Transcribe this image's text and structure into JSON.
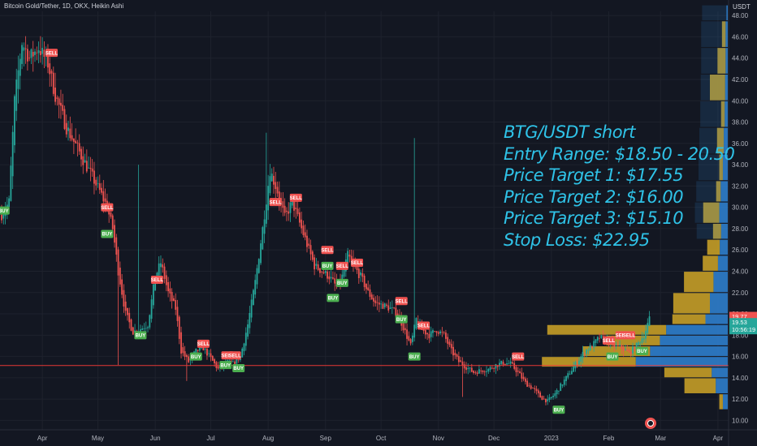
{
  "header": {
    "symbol_line": "Bitcoin Gold/Tether, 1D, OKX, Heikin Ashi",
    "price_unit": "USDT"
  },
  "annotation": {
    "lines": [
      "BTG/USDT short",
      "Entry Range: $18.50 - 20.50",
      "Price Target 1: $17.55",
      "Price Target 2: $16.00",
      "Price Target 3: $15.10",
      "Stop Loss: $22.95"
    ]
  },
  "price_tags": {
    "last": "19.77",
    "current": "19.53",
    "countdown": "10:56:19"
  },
  "colors": {
    "background": "#131722",
    "bull": "#26a69a",
    "bear": "#ef5350",
    "annotation": "#2fc3e8",
    "volume_profile_up": "#2e7dc9",
    "volume_profile_down": "#c9a227",
    "support_line": "#e53935",
    "buy_tag": "#4caf50",
    "sell_tag": "#f05250"
  },
  "chart_data": {
    "type": "candlestick",
    "chart_style": "Heikin Ashi",
    "y_axis": {
      "position": "right",
      "ylim": [
        9.5,
        49
      ],
      "ticks": [
        "10.00",
        "12.00",
        "14.00",
        "16.00",
        "18.00",
        "20.00",
        "22.00",
        "24.00",
        "26.00",
        "28.00",
        "30.00",
        "32.00",
        "34.00",
        "36.00",
        "38.00",
        "40.00",
        "42.00",
        "44.00",
        "46.00",
        "48.00"
      ]
    },
    "x_axis": {
      "start": "2022-03-10",
      "end": "2023-04-05",
      "ticks": [
        {
          "label": "Apr",
          "date": "2022-04-01"
        },
        {
          "label": "May",
          "date": "2022-05-01"
        },
        {
          "label": "Jun",
          "date": "2022-06-01"
        },
        {
          "label": "Jul",
          "date": "2022-07-01"
        },
        {
          "label": "Aug",
          "date": "2022-08-01"
        },
        {
          "label": "Sep",
          "date": "2022-09-01"
        },
        {
          "label": "Oct",
          "date": "2022-10-01"
        },
        {
          "label": "Nov",
          "date": "2022-11-01"
        },
        {
          "label": "Dec",
          "date": "2022-12-01"
        },
        {
          "label": "2023",
          "date": "2023-01-01"
        },
        {
          "label": "Feb",
          "date": "2023-02-01"
        },
        {
          "label": "Mar",
          "date": "2023-03-01"
        },
        {
          "label": "Apr",
          "date": "2023-04-01"
        }
      ]
    },
    "grid": true,
    "support_line": 15.15,
    "price_path": [
      {
        "date": "2022-03-10",
        "price": 29.3
      },
      {
        "date": "2022-03-14",
        "price": 30.5
      },
      {
        "date": "2022-03-17",
        "price": 40.0
      },
      {
        "date": "2022-03-21",
        "price": 45.5
      },
      {
        "date": "2022-03-25",
        "price": 44.0
      },
      {
        "date": "2022-03-30",
        "price": 45.0
      },
      {
        "date": "2022-04-04",
        "price": 43.5
      },
      {
        "date": "2022-04-08",
        "price": 40.5
      },
      {
        "date": "2022-04-14",
        "price": 37.5
      },
      {
        "date": "2022-04-20",
        "price": 35.5
      },
      {
        "date": "2022-04-26",
        "price": 33.5
      },
      {
        "date": "2022-05-02",
        "price": 31.5
      },
      {
        "date": "2022-05-06",
        "price": 30.0
      },
      {
        "date": "2022-05-09",
        "price": 28.0
      },
      {
        "date": "2022-05-12",
        "price": 24.0
      },
      {
        "date": "2022-05-16",
        "price": 20.0
      },
      {
        "date": "2022-05-20",
        "price": 18.3
      },
      {
        "date": "2022-05-24",
        "price": 18.6
      },
      {
        "date": "2022-05-28",
        "price": 19.0
      },
      {
        "date": "2022-06-01",
        "price": 23.5
      },
      {
        "date": "2022-06-04",
        "price": 24.8
      },
      {
        "date": "2022-06-08",
        "price": 22.0
      },
      {
        "date": "2022-06-12",
        "price": 20.5
      },
      {
        "date": "2022-06-15",
        "price": 16.5
      },
      {
        "date": "2022-06-19",
        "price": 15.5
      },
      {
        "date": "2022-06-23",
        "price": 16.5
      },
      {
        "date": "2022-06-27",
        "price": 16.8
      },
      {
        "date": "2022-07-01",
        "price": 15.8
      },
      {
        "date": "2022-07-05",
        "price": 14.8
      },
      {
        "date": "2022-07-09",
        "price": 15.5
      },
      {
        "date": "2022-07-13",
        "price": 15.3
      },
      {
        "date": "2022-07-17",
        "price": 16.0
      },
      {
        "date": "2022-07-21",
        "price": 19.0
      },
      {
        "date": "2022-07-25",
        "price": 23.0
      },
      {
        "date": "2022-07-29",
        "price": 28.0
      },
      {
        "date": "2022-08-02",
        "price": 33.5
      },
      {
        "date": "2022-08-06",
        "price": 31.5
      },
      {
        "date": "2022-08-10",
        "price": 29.0
      },
      {
        "date": "2022-08-14",
        "price": 30.5
      },
      {
        "date": "2022-08-18",
        "price": 28.5
      },
      {
        "date": "2022-08-22",
        "price": 26.5
      },
      {
        "date": "2022-08-26",
        "price": 24.5
      },
      {
        "date": "2022-08-30",
        "price": 24.0
      },
      {
        "date": "2022-09-03",
        "price": 23.5
      },
      {
        "date": "2022-09-07",
        "price": 22.5
      },
      {
        "date": "2022-09-10",
        "price": 23.5
      },
      {
        "date": "2022-09-13",
        "price": 25.5
      },
      {
        "date": "2022-09-16",
        "price": 24.5
      },
      {
        "date": "2022-09-20",
        "price": 23.5
      },
      {
        "date": "2022-09-24",
        "price": 22.0
      },
      {
        "date": "2022-09-28",
        "price": 21.0
      },
      {
        "date": "2022-10-02",
        "price": 20.8
      },
      {
        "date": "2022-10-06",
        "price": 20.5
      },
      {
        "date": "2022-10-10",
        "price": 20.0
      },
      {
        "date": "2022-10-14",
        "price": 18.3
      },
      {
        "date": "2022-10-17",
        "price": 17.0
      },
      {
        "date": "2022-10-20",
        "price": 19.5
      },
      {
        "date": "2022-10-23",
        "price": 18.5
      },
      {
        "date": "2022-10-27",
        "price": 18.0
      },
      {
        "date": "2022-10-31",
        "price": 18.5
      },
      {
        "date": "2022-11-04",
        "price": 18.0
      },
      {
        "date": "2022-11-08",
        "price": 16.5
      },
      {
        "date": "2022-11-12",
        "price": 15.5
      },
      {
        "date": "2022-11-16",
        "price": 15.0
      },
      {
        "date": "2022-11-20",
        "price": 14.5
      },
      {
        "date": "2022-11-24",
        "price": 14.7
      },
      {
        "date": "2022-11-28",
        "price": 14.8
      },
      {
        "date": "2022-12-02",
        "price": 15.2
      },
      {
        "date": "2022-12-06",
        "price": 15.4
      },
      {
        "date": "2022-12-10",
        "price": 15.3
      },
      {
        "date": "2022-12-14",
        "price": 14.5
      },
      {
        "date": "2022-12-18",
        "price": 13.5
      },
      {
        "date": "2022-12-22",
        "price": 13.0
      },
      {
        "date": "2022-12-26",
        "price": 12.2
      },
      {
        "date": "2022-12-30",
        "price": 11.8
      },
      {
        "date": "2023-01-03",
        "price": 12.5
      },
      {
        "date": "2023-01-07",
        "price": 13.5
      },
      {
        "date": "2023-01-11",
        "price": 14.5
      },
      {
        "date": "2023-01-15",
        "price": 15.5
      },
      {
        "date": "2023-01-19",
        "price": 16.5
      },
      {
        "date": "2023-01-23",
        "price": 17.0
      },
      {
        "date": "2023-01-27",
        "price": 17.8
      },
      {
        "date": "2023-01-31",
        "price": 17.5
      },
      {
        "date": "2023-02-04",
        "price": 17.0
      },
      {
        "date": "2023-02-08",
        "price": 16.8
      },
      {
        "date": "2023-02-12",
        "price": 16.3
      },
      {
        "date": "2023-02-16",
        "price": 17.0
      },
      {
        "date": "2023-02-20",
        "price": 18.0
      },
      {
        "date": "2023-02-23",
        "price": 19.5
      }
    ],
    "wick_spikes": [
      {
        "date": "2022-05-23",
        "high": 34.0
      },
      {
        "date": "2022-07-31",
        "high": 37.0
      },
      {
        "date": "2022-10-19",
        "high": 36.5
      },
      {
        "date": "2022-05-12",
        "low": 15.2
      },
      {
        "date": "2022-06-18",
        "low": 13.7
      },
      {
        "date": "2022-11-14",
        "low": 12.2
      }
    ],
    "signals": [
      {
        "type": "BUY",
        "date": "2022-03-11",
        "price": 29.7
      },
      {
        "type": "SELL",
        "date": "2022-04-06",
        "price": 44.5
      },
      {
        "type": "SELL",
        "date": "2022-05-06",
        "price": 30.0
      },
      {
        "type": "BUY",
        "date": "2022-05-06",
        "price": 27.5
      },
      {
        "type": "BUY",
        "date": "2022-05-24",
        "price": 18.0
      },
      {
        "type": "SELL",
        "date": "2022-06-02",
        "price": 23.2
      },
      {
        "type": "BUY",
        "date": "2022-06-23",
        "price": 16.0
      },
      {
        "type": "SELL",
        "date": "2022-06-27",
        "price": 17.2
      },
      {
        "type": "SELL",
        "date": "2022-07-10",
        "price": 16.1
      },
      {
        "type": "BUY",
        "date": "2022-07-09",
        "price": 15.2
      },
      {
        "type": "SELL",
        "date": "2022-07-14",
        "price": 16.1
      },
      {
        "type": "BUY",
        "date": "2022-07-16",
        "price": 14.9
      },
      {
        "type": "SELL",
        "date": "2022-08-05",
        "price": 30.5
      },
      {
        "type": "SELL",
        "date": "2022-08-16",
        "price": 30.9
      },
      {
        "type": "SELL",
        "date": "2022-09-02",
        "price": 26.0
      },
      {
        "type": "BUY",
        "date": "2022-09-02",
        "price": 24.5
      },
      {
        "type": "SELL",
        "date": "2022-09-10",
        "price": 24.5
      },
      {
        "type": "BUY",
        "date": "2022-09-10",
        "price": 22.9
      },
      {
        "type": "SELL",
        "date": "2022-09-18",
        "price": 24.8
      },
      {
        "type": "BUY",
        "date": "2022-09-05",
        "price": 21.5
      },
      {
        "type": "SELL",
        "date": "2022-10-12",
        "price": 21.2
      },
      {
        "type": "BUY",
        "date": "2022-10-12",
        "price": 19.5
      },
      {
        "type": "SELL",
        "date": "2022-10-24",
        "price": 18.9
      },
      {
        "type": "BUY",
        "date": "2022-10-19",
        "price": 16.0
      },
      {
        "type": "SELL",
        "date": "2022-12-14",
        "price": 16.0
      },
      {
        "type": "BUY",
        "date": "2023-01-05",
        "price": 11.0
      },
      {
        "type": "SELL",
        "date": "2023-02-01",
        "price": 17.5
      },
      {
        "type": "BUY",
        "date": "2023-02-03",
        "price": 16.0
      },
      {
        "type": "SELL",
        "date": "2023-02-08",
        "price": 18.0
      },
      {
        "type": "SELL",
        "date": "2023-02-12",
        "price": 18.0
      },
      {
        "type": "BUY",
        "date": "2023-02-19",
        "price": 16.5
      }
    ],
    "volume_profile": [
      {
        "from": 11.0,
        "to": 12.5,
        "up": 0.55,
        "down": 0.4
      },
      {
        "from": 12.5,
        "to": 14.0,
        "up": 1.35,
        "down": 3.5
      },
      {
        "from": 14.0,
        "to": 15.0,
        "up": 1.8,
        "down": 5.3
      },
      {
        "from": 15.0,
        "to": 16.0,
        "up": 10.3,
        "down": 10.5
      },
      {
        "from": 16.0,
        "to": 17.0,
        "up": 8.7,
        "down": 7.5
      },
      {
        "from": 17.0,
        "to": 18.0,
        "up": 7.6,
        "down": 6.0
      },
      {
        "from": 18.0,
        "to": 19.0,
        "up": 6.9,
        "down": 13.3
      },
      {
        "from": 19.0,
        "to": 20.0,
        "up": 2.5,
        "down": 3.7
      },
      {
        "from": 20.0,
        "to": 22.0,
        "up": 2.0,
        "down": 4.1
      },
      {
        "from": 22.0,
        "to": 24.0,
        "up": 1.6,
        "down": 3.3
      },
      {
        "from": 24.0,
        "to": 25.5,
        "up": 1.1,
        "down": 1.7
      },
      {
        "from": 25.5,
        "to": 27.0,
        "up": 0.9,
        "down": 1.4
      },
      {
        "from": 27.0,
        "to": 28.5,
        "up": 0.75,
        "down": 0.9
      },
      {
        "from": 28.5,
        "to": 30.5,
        "up": 0.95,
        "down": 1.8
      },
      {
        "from": 30.5,
        "to": 32.5,
        "up": 0.8,
        "down": 0.5
      },
      {
        "from": 32.5,
        "to": 35.0,
        "up": 0.55,
        "down": 0.4
      },
      {
        "from": 35.0,
        "to": 37.5,
        "up": 0.45,
        "down": 0.75
      },
      {
        "from": 37.5,
        "to": 40.0,
        "up": 0.35,
        "down": 0.4
      },
      {
        "from": 40.0,
        "to": 42.5,
        "up": 0.3,
        "down": 1.7
      },
      {
        "from": 42.5,
        "to": 45.0,
        "up": 0.25,
        "down": 0.9
      },
      {
        "from": 45.0,
        "to": 47.5,
        "up": 0.25,
        "down": 0.4
      },
      {
        "from": 47.5,
        "to": 49.0,
        "up": 0.15,
        "down": 0.0
      }
    ]
  }
}
